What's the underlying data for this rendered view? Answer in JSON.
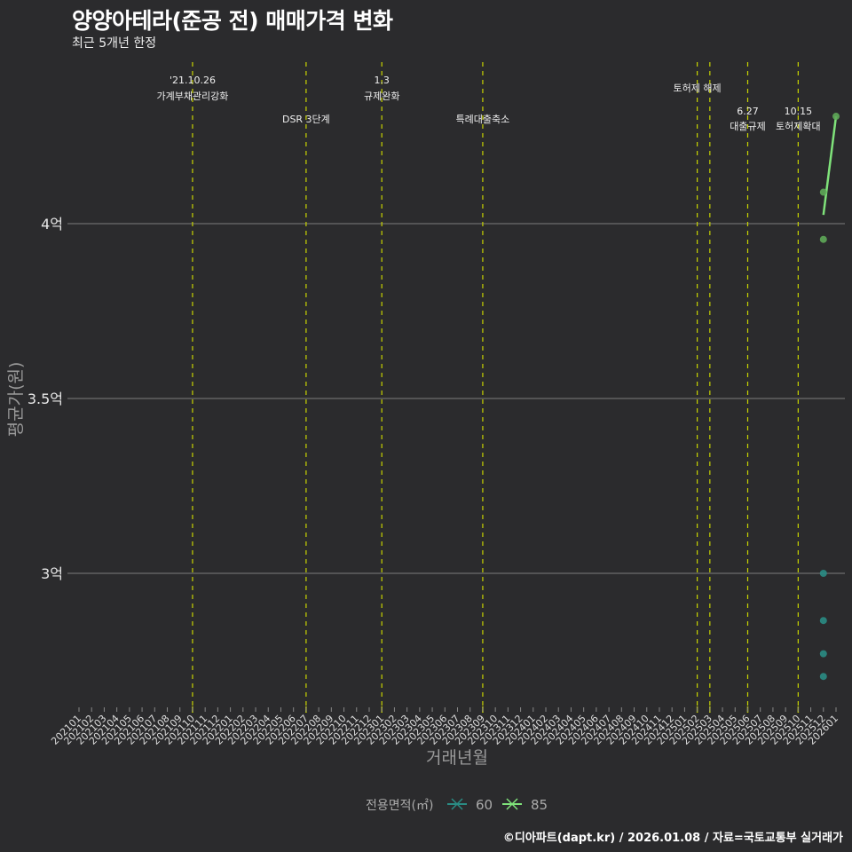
{
  "header": {
    "title": "양양아테라(준공 전) 매매가격 변화",
    "subtitle": "최근 5개년 한정"
  },
  "footer": {
    "credit": "©디아파트(dapt.kr) / 2026.01.08 / 자료=국토교통부 실거래가"
  },
  "colors": {
    "background": "#2b2b2d",
    "grid": "#6e6e6e",
    "event_line": "#c8d400",
    "series_60": "#2a8c84",
    "series_85": "#7fe27a",
    "series_85_point": "#5ea858"
  },
  "chart_data": {
    "type": "scatter",
    "title": "양양아테라(준공 전) 매매가격 변화",
    "subtitle": "최근 5개년 한정",
    "xlabel": "거래년월",
    "ylabel": "평균가(원)",
    "ylim": [
      2.62,
      4.35
    ],
    "y_ticks": [
      {
        "value": 3.0,
        "label": "3억"
      },
      {
        "value": 3.5,
        "label": "3.5억"
      },
      {
        "value": 4.0,
        "label": "4억"
      }
    ],
    "grid": true,
    "legend_position": "bottom",
    "legend_title": "전용면적(㎡)",
    "categories": [
      "202101",
      "202102",
      "202103",
      "202104",
      "202105",
      "202106",
      "202107",
      "202108",
      "202109",
      "202110",
      "202111",
      "202112",
      "202201",
      "202202",
      "202203",
      "202204",
      "202205",
      "202206",
      "202207",
      "202208",
      "202209",
      "202210",
      "202211",
      "202212",
      "202301",
      "202302",
      "202303",
      "202304",
      "202305",
      "202306",
      "202307",
      "202308",
      "202309",
      "202310",
      "202311",
      "202312",
      "202401",
      "202402",
      "202403",
      "202404",
      "202405",
      "202406",
      "202407",
      "202408",
      "202409",
      "202410",
      "202411",
      "202412",
      "202501",
      "202502",
      "202503",
      "202504",
      "202505",
      "202506",
      "202507",
      "202508",
      "202509",
      "202510",
      "202511",
      "202512",
      "202601"
    ],
    "series": [
      {
        "name": "60",
        "points": [
          {
            "x": "202512",
            "y": 3.0
          },
          {
            "x": "202512",
            "y": 2.865
          },
          {
            "x": "202512",
            "y": 2.77
          },
          {
            "x": "202512",
            "y": 2.705
          }
        ],
        "mean_line": []
      },
      {
        "name": "85",
        "points": [
          {
            "x": "202512",
            "y": 4.09
          },
          {
            "x": "202512",
            "y": 3.955
          },
          {
            "x": "202601",
            "y": 4.307
          }
        ],
        "mean_line": [
          {
            "x": "202512",
            "y": 4.025
          },
          {
            "x": "202601",
            "y": 4.307
          }
        ]
      }
    ],
    "events": [
      {
        "x": "202110",
        "label_top": "'21.10.26",
        "label": "가계부채관리강화",
        "row": 1
      },
      {
        "x": "202207",
        "label_top": "",
        "label": "DSR 3단계",
        "row": 2
      },
      {
        "x": "202301",
        "label_top": "1.3",
        "label": "규제완화",
        "row": 1
      },
      {
        "x": "202309",
        "label_top": "",
        "label": "특례대출축소",
        "row": 2
      },
      {
        "x": "202502",
        "label_top": "",
        "label": "토허제 해제",
        "row": 0
      },
      {
        "x": "202503",
        "label_top": "",
        "label": "",
        "row": 0
      },
      {
        "x": "202506",
        "label_top": "6.27",
        "label": "대출규제",
        "row": 3
      },
      {
        "x": "202510",
        "label_top": "10.15",
        "label": "토허제확대",
        "row": 3
      }
    ]
  }
}
